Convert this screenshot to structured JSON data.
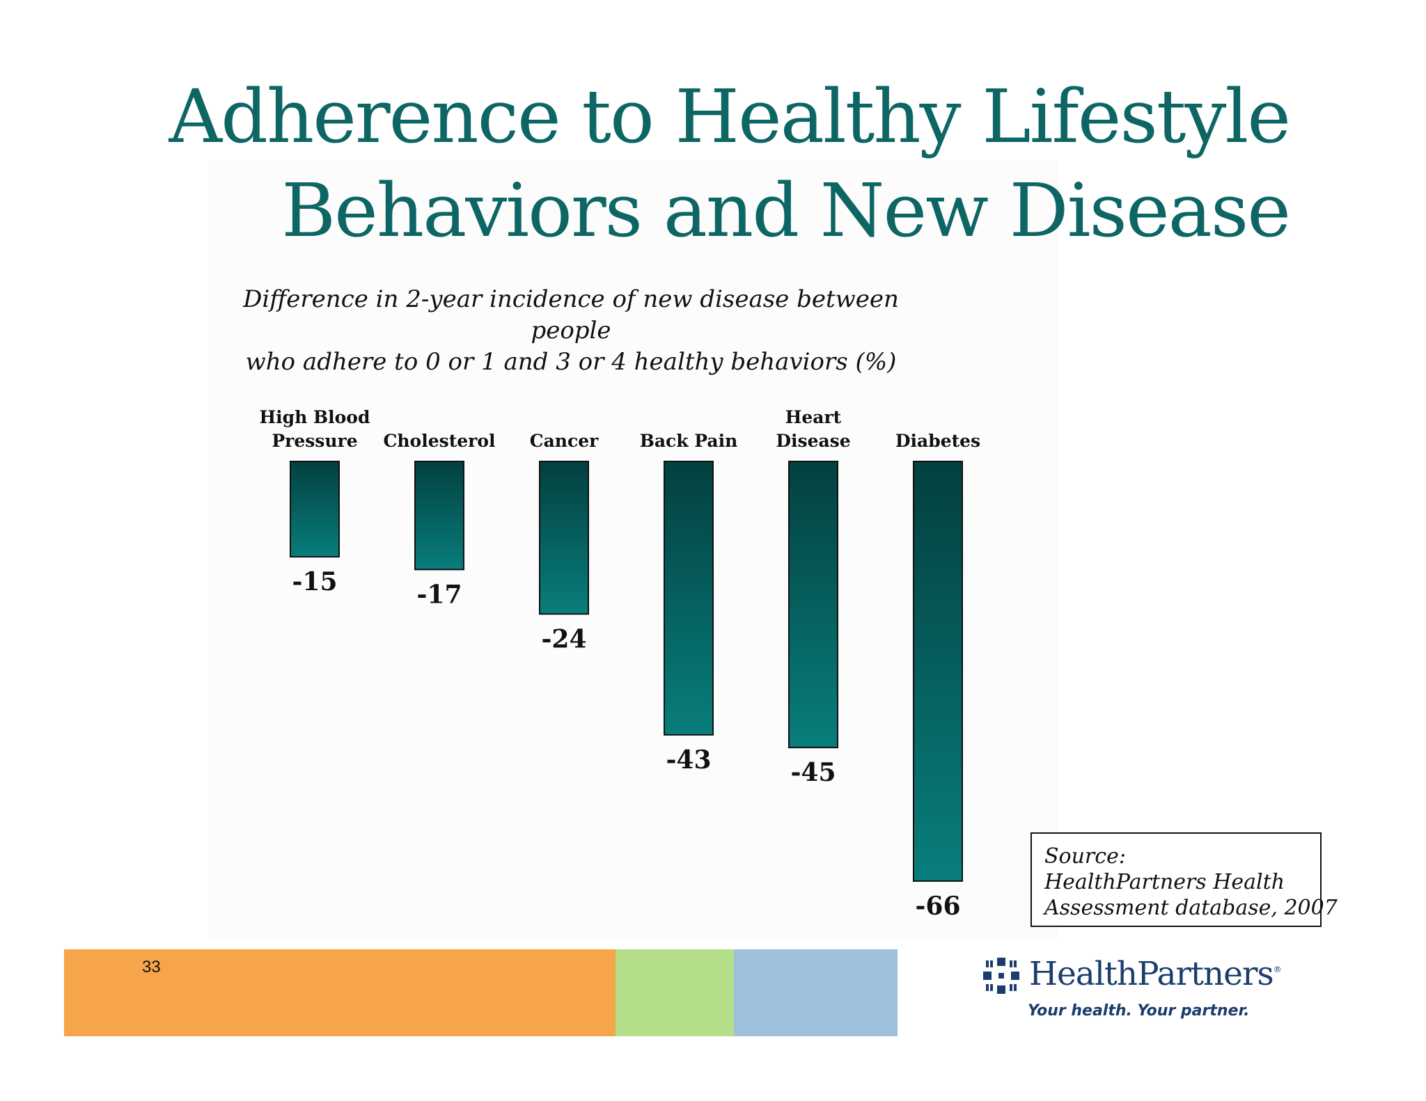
{
  "slide": {
    "title_line1": "Adherence to Healthy Lifestyle",
    "title_line2": "Behaviors and New Disease",
    "subtitle_line1": "Difference in 2-year incidence of new disease between people",
    "subtitle_line2": "who adhere to 0 or 1 and 3 or 4 healthy behaviors (%)",
    "page_number": "33"
  },
  "source": {
    "line1": "Source:",
    "line2": "HealthPartners Health",
    "line3": "Assessment database, 2007"
  },
  "logo": {
    "name": "HealthPartners",
    "registered": "®",
    "tagline": "Your health. Your partner."
  },
  "colors": {
    "title": "#0d6663",
    "bar_top": "#03403f",
    "bar_bottom": "#087e7c",
    "band_orange": "#f7a54a",
    "band_green": "#b5de88",
    "band_blue": "#9dc1dc",
    "logo": "#1b3d6d"
  },
  "chart_data": {
    "type": "bar",
    "categories": [
      [
        "High Blood",
        "Pressure"
      ],
      [
        "Cholesterol"
      ],
      [
        "Cancer"
      ],
      [
        "Back Pain"
      ],
      [
        "Heart",
        "Disease"
      ],
      [
        "Diabetes"
      ]
    ],
    "values": [
      -15,
      -17,
      -24,
      -43,
      -45,
      -66
    ],
    "value_labels": [
      "-15",
      "-17",
      "-24",
      "-43",
      "-45",
      "-66"
    ],
    "ylim": [
      -66,
      0
    ],
    "orientation": "vertical, bars hang downward from zero",
    "grid": false,
    "legend": "none"
  }
}
